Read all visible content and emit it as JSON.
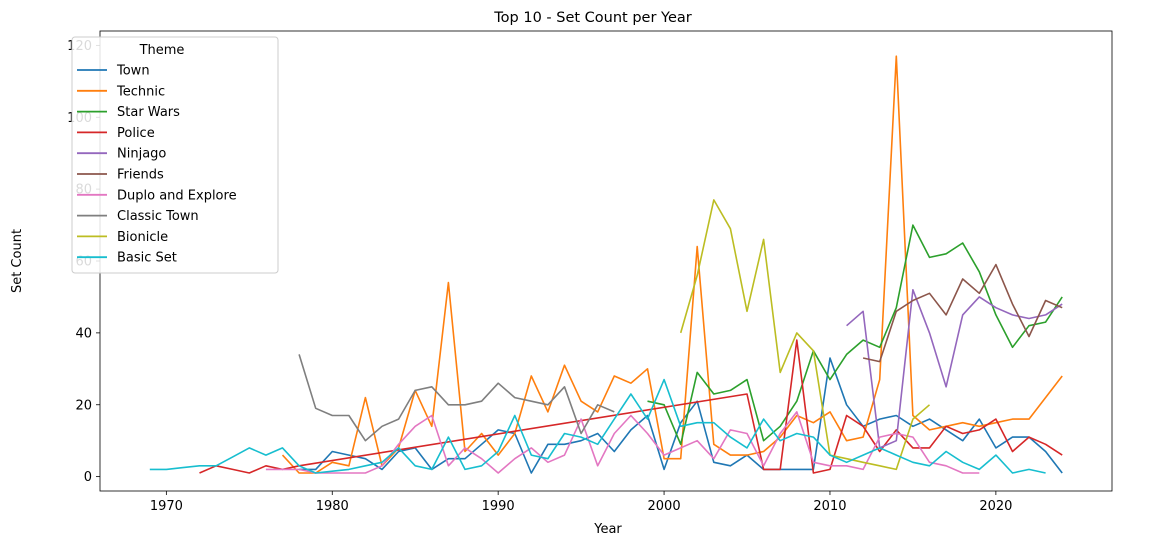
{
  "chart_data": {
    "type": "line",
    "title": "Top 10 - Set Count per Year",
    "xlabel": "Year",
    "ylabel": "Set Count",
    "xlim": [
      1966,
      2027
    ],
    "ylim": [
      -4,
      124
    ],
    "xticks": [
      1970,
      1980,
      1990,
      2000,
      2010,
      2020
    ],
    "yticks": [
      0,
      20,
      40,
      60,
      80,
      100,
      120
    ],
    "grid": false,
    "legend": {
      "title": "Theme",
      "placement": "top-left"
    },
    "series": [
      {
        "name": "Town",
        "color": "#1f77b4",
        "x": [
          1978,
          1979,
          1980,
          1981,
          1982,
          1983,
          1984,
          1985,
          1986,
          1987,
          1988,
          1989,
          1990,
          1991,
          1992,
          1993,
          1994,
          1995,
          1996,
          1997,
          1998,
          1999,
          2000,
          2001,
          2002,
          2003,
          2004,
          2005,
          2006,
          2007,
          2008,
          2009,
          2010,
          2011,
          2012,
          2013,
          2014,
          2015,
          2016,
          2017,
          2018,
          2019,
          2020,
          2021,
          2022,
          2023,
          2024
        ],
        "y": [
          2,
          2,
          7,
          6,
          5,
          2,
          7,
          8,
          2,
          5,
          5,
          9,
          13,
          12,
          1,
          9,
          9,
          10,
          12,
          7,
          13,
          17,
          2,
          15,
          21,
          4,
          3,
          6,
          2,
          2,
          2,
          2,
          33,
          20,
          14,
          16,
          17,
          14,
          16,
          13,
          10,
          16,
          8,
          11,
          11,
          7,
          1
        ]
      },
      {
        "name": "Technic",
        "color": "#ff7f0e",
        "x": [
          1977,
          1978,
          1979,
          1980,
          1981,
          1982,
          1983,
          1984,
          1985,
          1986,
          1987,
          1988,
          1989,
          1990,
          1991,
          1992,
          1993,
          1994,
          1995,
          1996,
          1997,
          1998,
          1999,
          2000,
          2001,
          2002,
          2003,
          2004,
          2005,
          2006,
          2007,
          2008,
          2009,
          2010,
          2011,
          2012,
          2013,
          2014,
          2015,
          2016,
          2017,
          2018,
          2019,
          2020,
          2021,
          2022,
          2024
        ],
        "y": [
          6,
          1,
          1,
          4,
          3,
          22,
          3,
          8,
          24,
          14,
          54,
          7,
          12,
          6,
          12,
          28,
          18,
          31,
          21,
          18,
          28,
          26,
          30,
          5,
          5,
          64,
          9,
          6,
          6,
          7,
          11,
          17,
          15,
          18,
          10,
          11,
          27,
          117,
          17,
          13,
          14,
          15,
          14,
          15,
          16,
          16,
          28
        ]
      },
      {
        "name": "Star Wars",
        "color": "#2ca02c",
        "x": [
          1999,
          2000,
          2001,
          2002,
          2003,
          2004,
          2005,
          2006,
          2007,
          2008,
          2009,
          2010,
          2011,
          2012,
          2013,
          2014,
          2015,
          2016,
          2017,
          2018,
          2019,
          2020,
          2021,
          2022,
          2023,
          2024
        ],
        "y": [
          21,
          20,
          9,
          29,
          23,
          24,
          27,
          10,
          14,
          21,
          35,
          27,
          34,
          38,
          36,
          47,
          70,
          61,
          62,
          65,
          57,
          45,
          36,
          42,
          43,
          50
        ]
      },
      {
        "name": "Police",
        "color": "#d62728",
        "x": [
          1972,
          1973,
          1974,
          1975,
          1976,
          1977,
          1978,
          2005,
          2006,
          2007,
          2008,
          2009,
          2010,
          2011,
          2012,
          2013,
          2014,
          2015,
          2016,
          2017,
          2018,
          2019,
          2020,
          2021,
          2022,
          2023,
          2024
        ],
        "y": [
          1,
          3,
          2,
          1,
          3,
          2,
          3,
          23,
          2,
          2,
          38,
          1,
          2,
          17,
          14,
          7,
          13,
          8,
          8,
          14,
          12,
          13,
          16,
          7,
          11,
          9,
          6
        ]
      },
      {
        "name": "Ninjago",
        "color": "#9467bd",
        "x": [
          2011,
          2012,
          2013,
          2014,
          2015,
          2016,
          2017,
          2018,
          2019,
          2020,
          2021,
          2022,
          2023,
          2024
        ],
        "y": [
          42,
          46,
          8,
          10,
          52,
          40,
          25,
          45,
          50,
          47,
          45,
          44,
          45,
          48
        ]
      },
      {
        "name": "Friends",
        "color": "#8c564b",
        "x": [
          2012,
          2013,
          2014,
          2015,
          2016,
          2017,
          2018,
          2019,
          2020,
          2021,
          2022,
          2023,
          2024
        ],
        "y": [
          33,
          32,
          46,
          49,
          51,
          45,
          55,
          51,
          59,
          48,
          39,
          49,
          47
        ]
      },
      {
        "name": "Duplo and Explore",
        "color": "#e377c2",
        "x": [
          1976,
          1977,
          1978,
          1979,
          1980,
          1981,
          1982,
          1983,
          1984,
          1985,
          1986,
          1987,
          1988,
          1989,
          1990,
          1991,
          1992,
          1993,
          1994,
          1995,
          1996,
          1997,
          1998,
          1999,
          2000,
          2001,
          2002,
          2003,
          2004,
          2005,
          2006,
          2007,
          2008,
          2009,
          2010,
          2011,
          2012,
          2013,
          2014,
          2015,
          2016,
          2017,
          2018,
          2019
        ],
        "y": [
          2,
          2,
          2,
          1,
          1,
          1,
          1,
          3,
          9,
          14,
          17,
          3,
          8,
          5,
          1,
          5,
          8,
          4,
          6,
          16,
          3,
          12,
          17,
          12,
          6,
          8,
          10,
          5,
          13,
          12,
          3,
          12,
          18,
          4,
          3,
          3,
          2,
          11,
          12,
          11,
          4,
          3,
          1,
          1
        ]
      },
      {
        "name": "Classic Town",
        "color": "#7f7f7f",
        "x": [
          1978,
          1979,
          1980,
          1981,
          1982,
          1983,
          1984,
          1985,
          1986,
          1987,
          1988,
          1989,
          1990,
          1991,
          1992,
          1993,
          1994,
          1995,
          1996,
          1997
        ],
        "y": [
          34,
          19,
          17,
          17,
          10,
          14,
          16,
          24,
          25,
          20,
          20,
          21,
          26,
          22,
          21,
          20,
          25,
          12,
          20,
          18
        ]
      },
      {
        "name": "Bionicle",
        "color": "#bcbd22",
        "x": [
          2001,
          2002,
          2003,
          2004,
          2005,
          2006,
          2007,
          2008,
          2009,
          2010,
          2011,
          2012,
          2013,
          2014,
          2015,
          2016
        ],
        "y": [
          40,
          56,
          77,
          69,
          46,
          66,
          29,
          40,
          35,
          6,
          5,
          4,
          3,
          2,
          16,
          20
        ]
      },
      {
        "name": "Basic Set",
        "color": "#17becf",
        "x": [
          1969,
          1970,
          1971,
          1972,
          1973,
          1974,
          1975,
          1976,
          1977,
          1978,
          1979,
          1980,
          1981,
          1982,
          1983,
          1984,
          1985,
          1986,
          1987,
          1988,
          1989,
          1990,
          1991,
          1992,
          1993,
          1994,
          1995,
          1996,
          1997,
          1998,
          1999,
          2000,
          2001,
          2002,
          2003,
          2004,
          2005,
          2006,
          2007,
          2008,
          2009,
          2010,
          2011,
          2012,
          2013,
          2014,
          2015,
          2016,
          2017,
          2018,
          2019,
          2020,
          2021,
          2022,
          2023
        ],
        "y": [
          2,
          2,
          2.5,
          3,
          3,
          5.5,
          8,
          6,
          8,
          3,
          1,
          1.5,
          2,
          3,
          4,
          8,
          3,
          2,
          11,
          2,
          3,
          7,
          17,
          6,
          5,
          12,
          11,
          9,
          16,
          23,
          16,
          27,
          14,
          15,
          15,
          11,
          8,
          16,
          10,
          12,
          11,
          6,
          4,
          6,
          8,
          6,
          4,
          3,
          7,
          4,
          2,
          6,
          1,
          2,
          1
        ]
      }
    ]
  }
}
